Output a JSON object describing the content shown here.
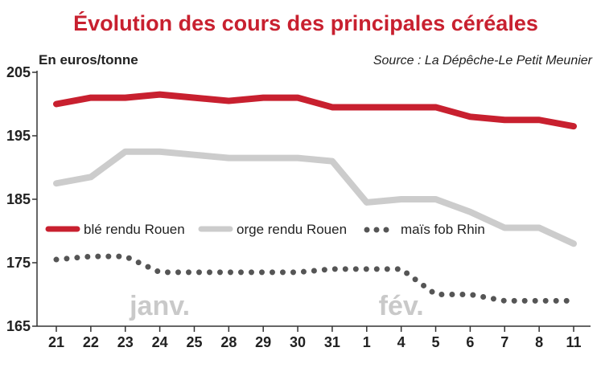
{
  "chart_data": {
    "type": "line",
    "title": "Évolution des cours des principales céréales",
    "ylabel": "En euros/tonne",
    "source": "Source : La Dépêche-Le Petit Meunier",
    "ylim": [
      165,
      205
    ],
    "yticks": [
      "165",
      "175",
      "185",
      "195",
      "205"
    ],
    "categories": [
      "21",
      "22",
      "23",
      "24",
      "25",
      "28",
      "29",
      "30",
      "31",
      "1",
      "4",
      "5",
      "6",
      "7",
      "8",
      "11"
    ],
    "months": [
      {
        "label": "janv.",
        "at": "24"
      },
      {
        "label": "fév.",
        "at": "4"
      }
    ],
    "legend_position": "middle",
    "grid": false,
    "series": [
      {
        "name": "blé rendu Rouen",
        "color": "#c8202f",
        "style": "solid",
        "values": [
          200,
          201,
          201,
          201.5,
          201,
          200.5,
          201,
          201,
          199.5,
          199.5,
          199.5,
          199.5,
          198,
          197.5,
          197.5,
          196.5
        ]
      },
      {
        "name": "orge rendu Rouen",
        "color": "#cccccc",
        "style": "solid",
        "values": [
          187.5,
          188.5,
          192.5,
          192.5,
          192,
          191.5,
          191.5,
          191.5,
          191,
          184.5,
          185,
          185,
          183,
          180.5,
          180.5,
          178
        ]
      },
      {
        "name": "maïs fob Rhin",
        "color": "#555555",
        "style": "dotted",
        "values": [
          175.5,
          176,
          176,
          173.5,
          173.5,
          173.5,
          173.5,
          173.5,
          174,
          174,
          174,
          170,
          170,
          169,
          169,
          169
        ]
      }
    ]
  }
}
